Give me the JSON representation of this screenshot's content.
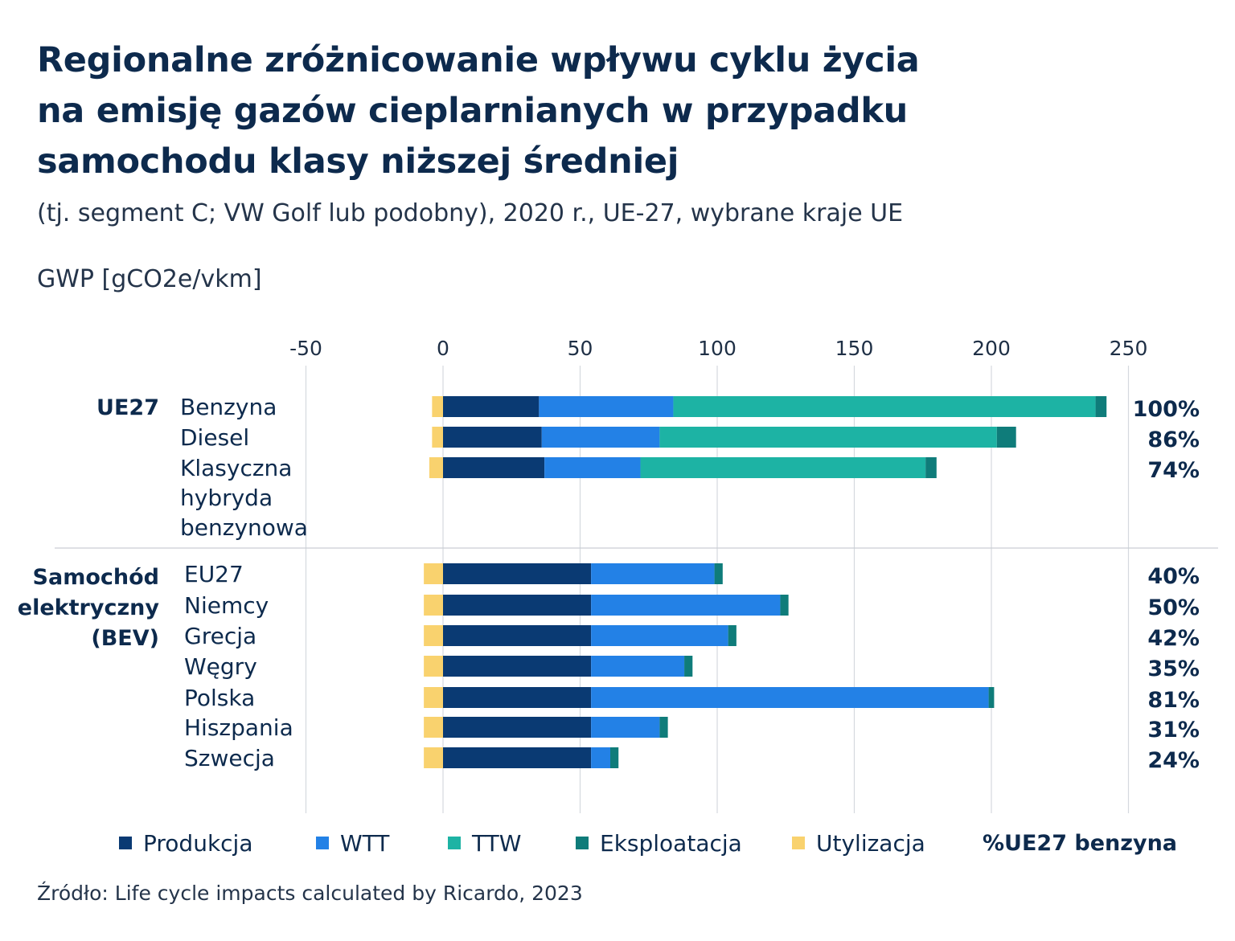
{
  "title_lines": [
    "Regionalne zróżnicowanie wpływu cyklu życia",
    "na emisję gazów cieplarnianych w przypadku",
    "samochodu klasy niższej średniej"
  ],
  "subtitle": "(tj. segment C; VW Golf lub podobny), 2020 r., UE-27, wybrane kraje UE",
  "unit_label": "GWP [gCO2e/vkm]",
  "source": "Źródło: Life cycle impacts calculated by Ricardo, 2023",
  "chart_data": {
    "type": "bar",
    "orientation": "horizontal",
    "stacked": true,
    "xlim": [
      -50,
      250
    ],
    "x_ticks": [
      -50,
      0,
      50,
      100,
      150,
      200,
      250
    ],
    "x_tick_labels": [
      "-50",
      "0",
      "50",
      "100",
      "150",
      "200",
      "250"
    ],
    "grid": true,
    "legend_position": "bottom",
    "series": [
      {
        "key": "produkcja",
        "name": "Produkcja",
        "color": "#0a3a73"
      },
      {
        "key": "wtt",
        "name": "WTT",
        "color": "#2381e6"
      },
      {
        "key": "ttw",
        "name": "TTW",
        "color": "#1db3a4"
      },
      {
        "key": "eksploatacja",
        "name": "Eksploatacja",
        "color": "#0f7c7a"
      },
      {
        "key": "utylizacja",
        "name": "Utylizacja",
        "color": "#f9d26e"
      }
    ],
    "pct_legend_label": "%UE27 benzyna",
    "groups": [
      {
        "label_lines": [
          "UE27"
        ],
        "rows": [
          {
            "label_lines": [
              "Benzyna"
            ],
            "produkcja": 35,
            "wtt": 49,
            "ttw": 154,
            "eksploatacja": 4,
            "utylizacja": -4,
            "pct": "100%"
          },
          {
            "label_lines": [
              "Diesel"
            ],
            "produkcja": 36,
            "wtt": 43,
            "ttw": 123,
            "eksploatacja": 7,
            "utylizacja": -4,
            "pct": "86%"
          },
          {
            "label_lines": [
              "Klasyczna",
              "hybryda",
              "benzynowa"
            ],
            "produkcja": 37,
            "wtt": 35,
            "ttw": 104,
            "eksploatacja": 4,
            "utylizacja": -5,
            "pct": "74%"
          }
        ]
      },
      {
        "label_lines": [
          "Samochód",
          "elektryczny",
          "(BEV)"
        ],
        "rows": [
          {
            "label_lines": [
              "EU27"
            ],
            "produkcja": 54,
            "wtt": 45,
            "ttw": 0,
            "eksploatacja": 3,
            "utylizacja": -7,
            "pct": "40%"
          },
          {
            "label_lines": [
              "Niemcy"
            ],
            "produkcja": 54,
            "wtt": 69,
            "ttw": 0,
            "eksploatacja": 3,
            "utylizacja": -7,
            "pct": "50%"
          },
          {
            "label_lines": [
              "Grecja"
            ],
            "produkcja": 54,
            "wtt": 50,
            "ttw": 0,
            "eksploatacja": 3,
            "utylizacja": -7,
            "pct": "42%"
          },
          {
            "label_lines": [
              "Węgry"
            ],
            "produkcja": 54,
            "wtt": 34,
            "ttw": 0,
            "eksploatacja": 3,
            "utylizacja": -7,
            "pct": "35%"
          },
          {
            "label_lines": [
              "Polska"
            ],
            "produkcja": 54,
            "wtt": 145,
            "ttw": 0,
            "eksploatacja": 2,
            "utylizacja": -7,
            "pct": "81%"
          },
          {
            "label_lines": [
              "Hiszpania"
            ],
            "produkcja": 54,
            "wtt": 25,
            "ttw": 0,
            "eksploatacja": 3,
            "utylizacja": -7,
            "pct": "31%"
          },
          {
            "label_lines": [
              "Szwecja"
            ],
            "produkcja": 54,
            "wtt": 7,
            "ttw": 0,
            "eksploatacja": 3,
            "utylizacja": -7,
            "pct": "24%"
          }
        ]
      }
    ]
  }
}
